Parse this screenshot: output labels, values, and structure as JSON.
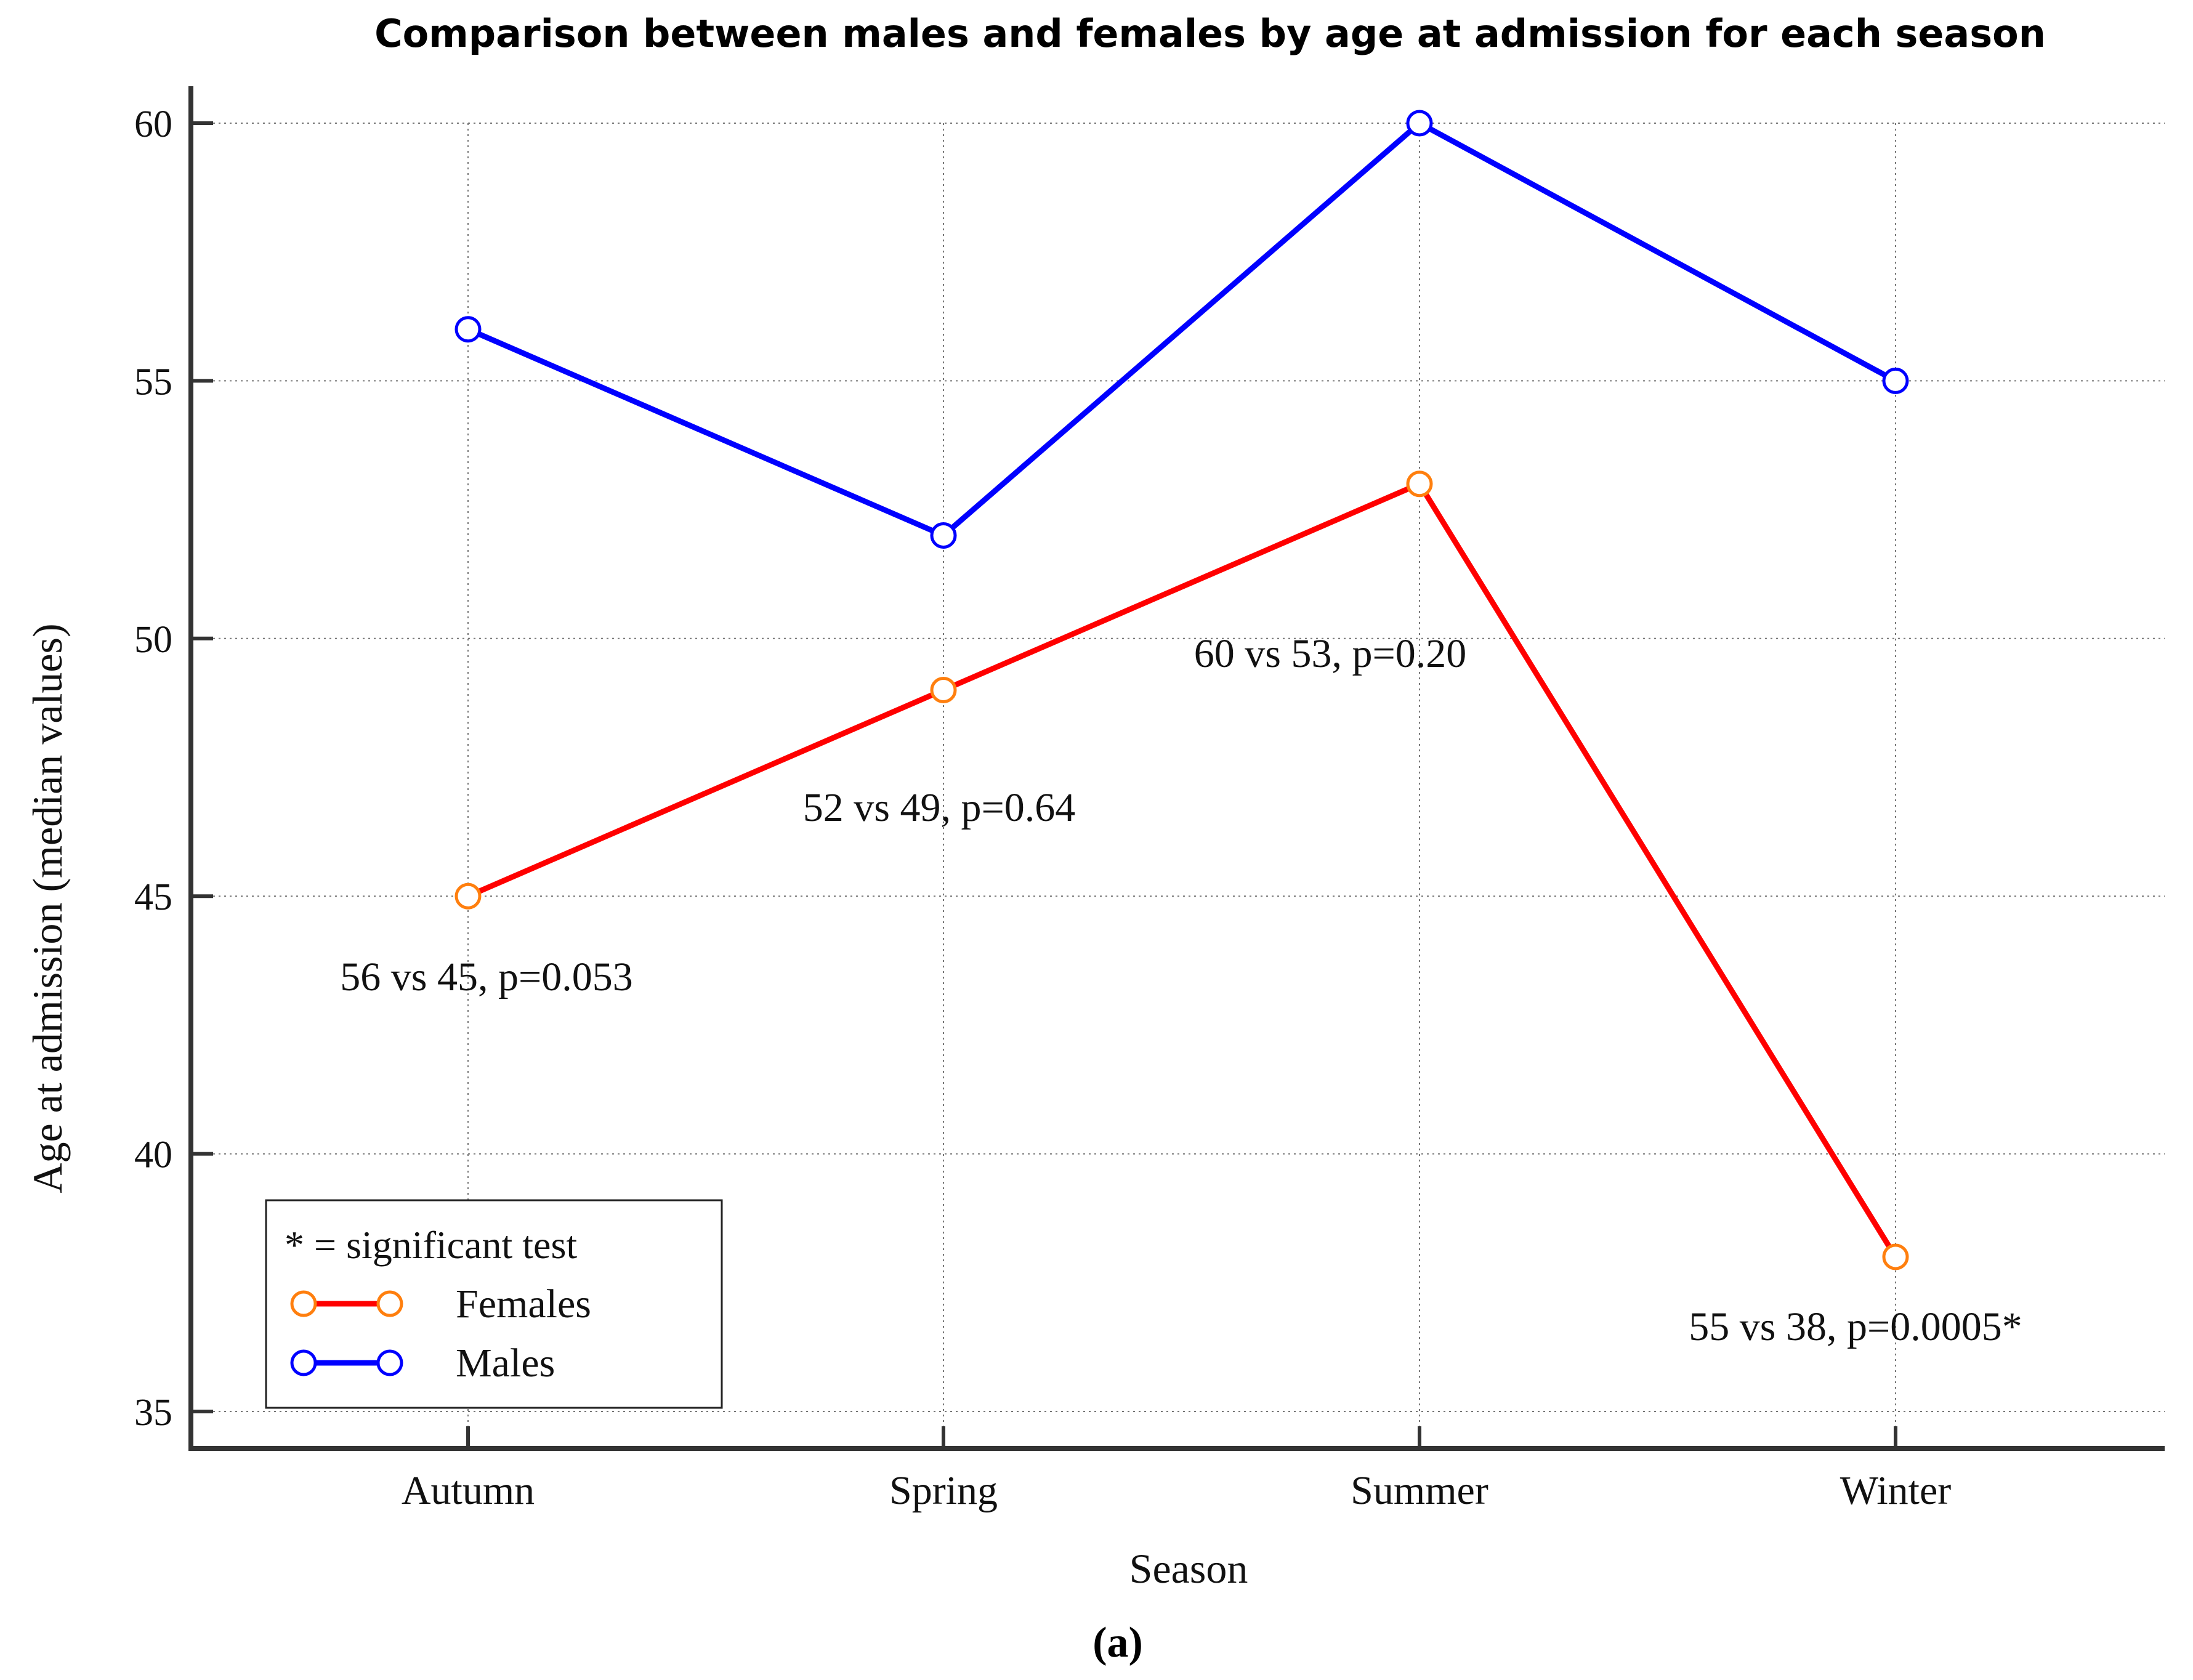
{
  "chart_data": {
    "type": "line",
    "title": "Comparison between males and females by age at admission for each season",
    "xlabel": "Season",
    "ylabel": "Age at admission (median values)",
    "caption": "(a)",
    "categories": [
      "Autumn",
      "Spring",
      "Summer",
      "Winter"
    ],
    "ylim": [
      35,
      60.5
    ],
    "yticks": [
      35,
      40,
      45,
      50,
      55,
      60
    ],
    "grid": true,
    "series": [
      {
        "name": "Females",
        "values": [
          45,
          49,
          53,
          38
        ],
        "line_color": "#ff0000",
        "marker_color": "#ff7f0e"
      },
      {
        "name": "Males",
        "values": [
          56,
          52,
          60,
          55
        ],
        "line_color": "#0000ff",
        "marker_color": "#0000ff"
      }
    ],
    "annotations": [
      {
        "category": "Autumn",
        "text": "56 vs 45, p=0.053"
      },
      {
        "category": "Spring",
        "text": "52 vs 49, p=0.64"
      },
      {
        "category": "Summer",
        "text": "60 vs 53, p=0.20"
      },
      {
        "category": "Winter",
        "text": "55 vs 38, p=0.0005*"
      }
    ],
    "legend": {
      "note": "* = significant test",
      "entries": [
        "Females",
        "Males"
      ],
      "location": "bottom-left"
    }
  }
}
